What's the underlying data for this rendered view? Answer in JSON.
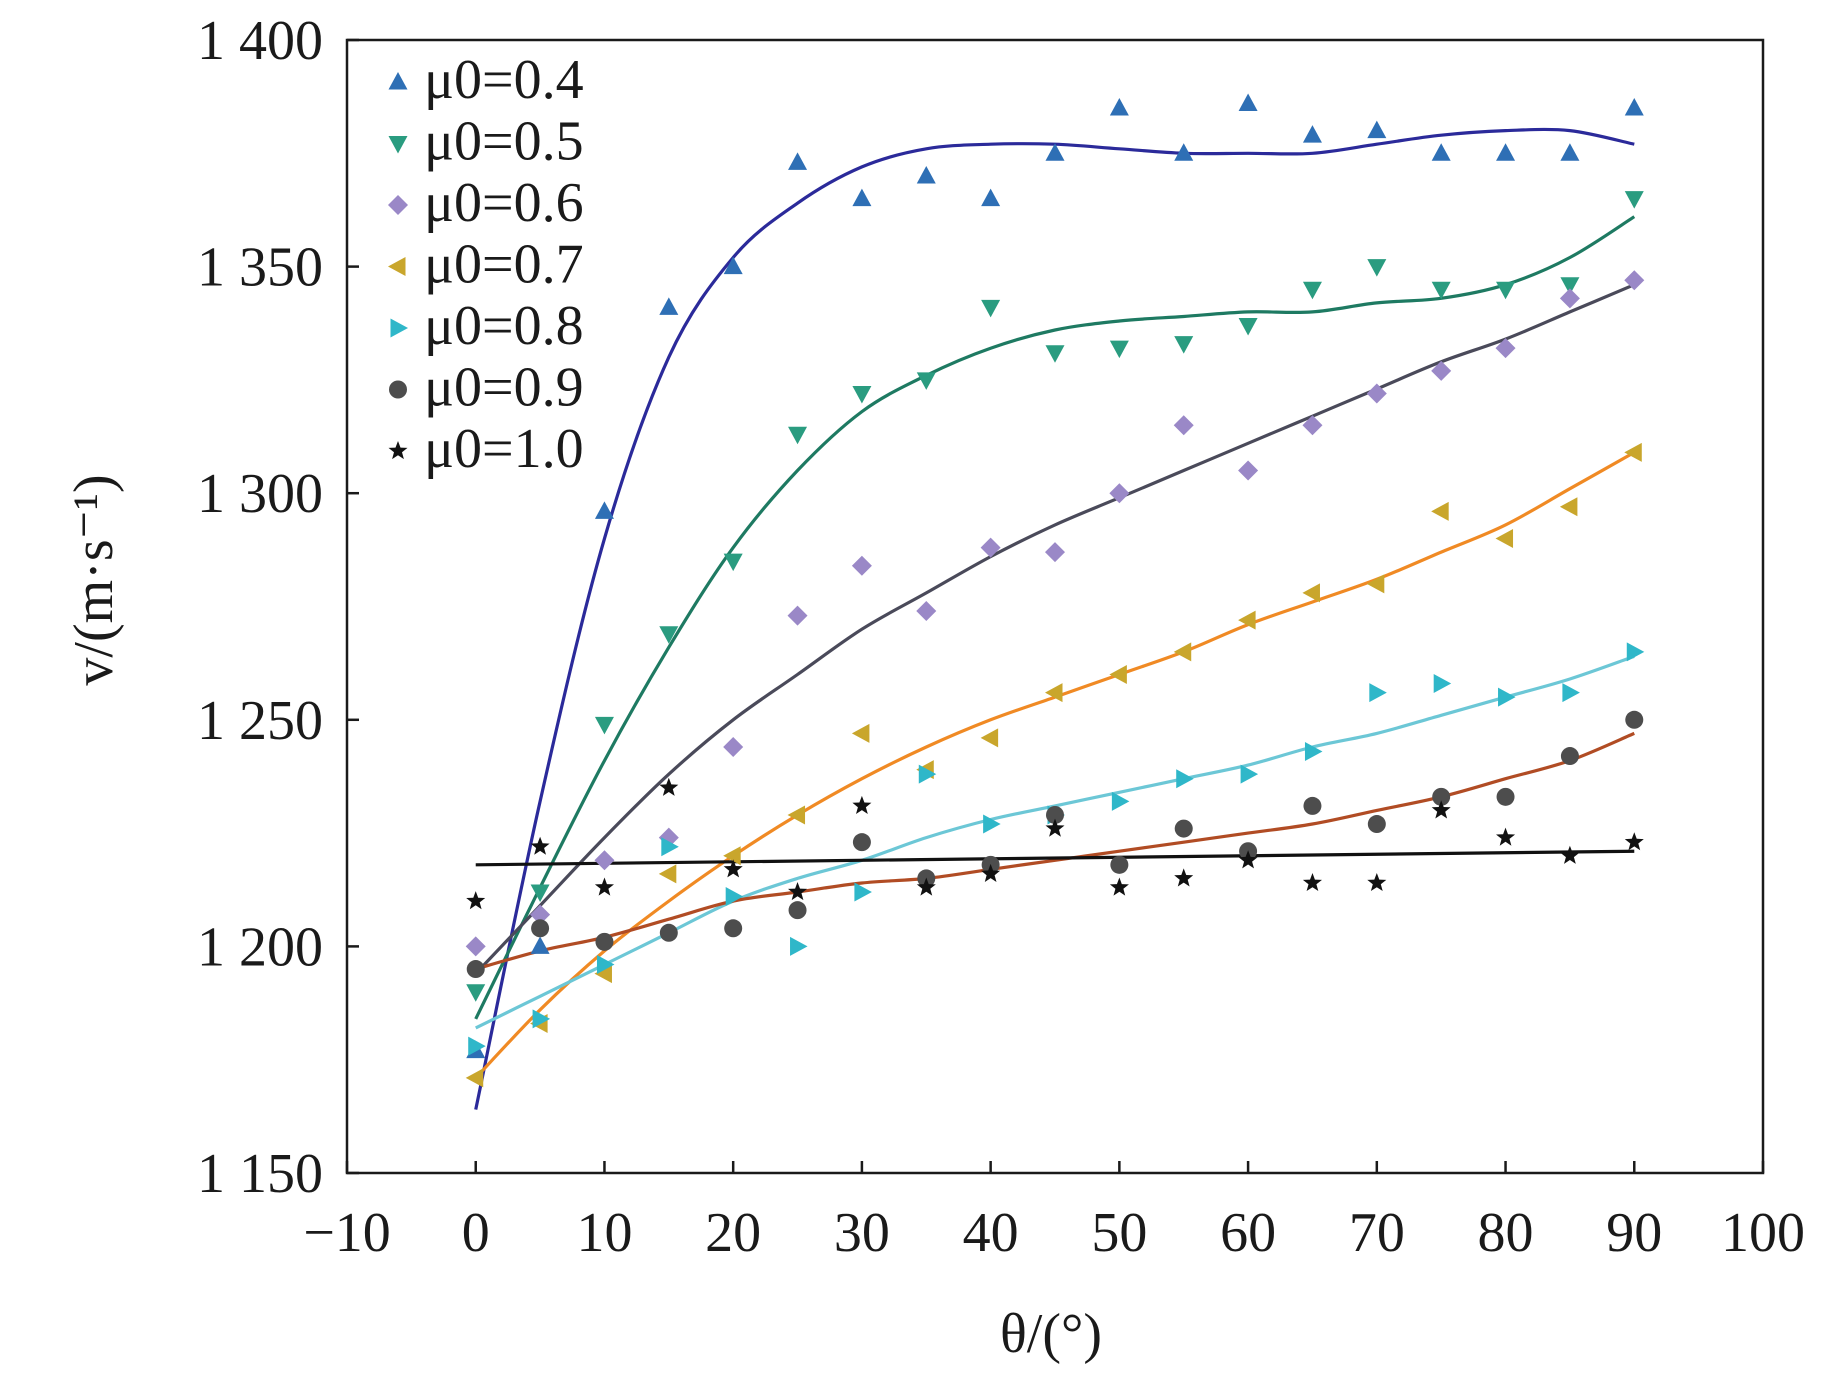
{
  "chart_data": {
    "type": "scatter",
    "xlabel": "θ/(°)",
    "ylabel": "v/(m·s⁻¹)",
    "xlim": [
      -10,
      100
    ],
    "ylim": [
      1150,
      1400
    ],
    "x_ticks": [
      -10,
      0,
      10,
      20,
      30,
      40,
      50,
      60,
      70,
      80,
      90,
      100
    ],
    "x_tick_labels": [
      "−10",
      "0",
      "10",
      "20",
      "30",
      "40",
      "50",
      "60",
      "70",
      "80",
      "90",
      "100"
    ],
    "y_ticks": [
      1150,
      1200,
      1250,
      1300,
      1350,
      1400
    ],
    "y_tick_labels": [
      "1 150",
      "1 200",
      "1 250",
      "1 300",
      "1 350",
      "1 400"
    ],
    "legend_position": "top-left",
    "grid": false,
    "x": [
      0,
      5,
      10,
      15,
      20,
      25,
      30,
      35,
      40,
      45,
      50,
      55,
      60,
      65,
      70,
      75,
      80,
      85,
      90
    ],
    "series": [
      {
        "name": "μ0=0.4",
        "marker": "triangle-up",
        "marker_color": "#2e6fb5",
        "line_color": "#2b2a9a",
        "values": [
          1177,
          1200,
          1296,
          1341,
          1350,
          1373,
          1365,
          1370,
          1365,
          1375,
          1385,
          1375,
          1386,
          1379,
          1380,
          1375,
          1375,
          1375,
          1385
        ],
        "fit": [
          [
            0,
            1164
          ],
          [
            5,
            1232
          ],
          [
            10,
            1290
          ],
          [
            15,
            1330
          ],
          [
            20,
            1352
          ],
          [
            25,
            1364
          ],
          [
            30,
            1372
          ],
          [
            35,
            1376
          ],
          [
            40,
            1377
          ],
          [
            45,
            1377
          ],
          [
            50,
            1376
          ],
          [
            55,
            1375
          ],
          [
            60,
            1375
          ],
          [
            65,
            1375
          ],
          [
            70,
            1377
          ],
          [
            75,
            1379
          ],
          [
            80,
            1380
          ],
          [
            85,
            1380
          ],
          [
            90,
            1377
          ]
        ]
      },
      {
        "name": "μ0=0.5",
        "marker": "triangle-down",
        "marker_color": "#2a9c80",
        "line_color": "#1e7a62",
        "values": [
          1190,
          1212,
          1249,
          1269,
          1285,
          1313,
          1322,
          1325,
          1341,
          1331,
          1332,
          1333,
          1337,
          1345,
          1350,
          1345,
          1345,
          1346,
          1365
        ],
        "fit": [
          [
            0,
            1184
          ],
          [
            5,
            1213
          ],
          [
            10,
            1241
          ],
          [
            15,
            1266
          ],
          [
            20,
            1288
          ],
          [
            25,
            1305
          ],
          [
            30,
            1318
          ],
          [
            35,
            1326
          ],
          [
            40,
            1332
          ],
          [
            45,
            1336
          ],
          [
            50,
            1338
          ],
          [
            55,
            1339
          ],
          [
            60,
            1340
          ],
          [
            65,
            1340
          ],
          [
            70,
            1342
          ],
          [
            75,
            1343
          ],
          [
            80,
            1346
          ],
          [
            85,
            1352
          ],
          [
            90,
            1361
          ]
        ]
      },
      {
        "name": "μ0=0.6",
        "marker": "diamond",
        "marker_color": "#9a88c7",
        "line_color": "#4a4a5a",
        "values": [
          1200,
          1207,
          1219,
          1224,
          1244,
          1273,
          1284,
          1274,
          1288,
          1287,
          1300,
          1315,
          1305,
          1315,
          1322,
          1327,
          1332,
          1343,
          1347
        ],
        "fit": [
          [
            0,
            1194
          ],
          [
            5,
            1209
          ],
          [
            10,
            1224
          ],
          [
            15,
            1238
          ],
          [
            20,
            1250
          ],
          [
            25,
            1260
          ],
          [
            30,
            1270
          ],
          [
            35,
            1278
          ],
          [
            40,
            1286
          ],
          [
            45,
            1293
          ],
          [
            50,
            1299
          ],
          [
            55,
            1305
          ],
          [
            60,
            1311
          ],
          [
            65,
            1317
          ],
          [
            70,
            1323
          ],
          [
            75,
            1329
          ],
          [
            80,
            1334
          ],
          [
            85,
            1340
          ],
          [
            90,
            1346
          ]
        ]
      },
      {
        "name": "μ0=0.7",
        "marker": "triangle-left",
        "marker_color": "#c9a62c",
        "line_color": "#f08a24",
        "values": [
          1171,
          1183,
          1194,
          1216,
          1220,
          1229,
          1247,
          1239,
          1246,
          1256,
          1260,
          1265,
          1272,
          1278,
          1280,
          1296,
          1290,
          1297,
          1309
        ],
        "fit": [
          [
            0,
            1171
          ],
          [
            5,
            1186
          ],
          [
            10,
            1199
          ],
          [
            15,
            1210
          ],
          [
            20,
            1220
          ],
          [
            25,
            1229
          ],
          [
            30,
            1237
          ],
          [
            35,
            1244
          ],
          [
            40,
            1250
          ],
          [
            45,
            1255
          ],
          [
            50,
            1260
          ],
          [
            55,
            1265
          ],
          [
            60,
            1271
          ],
          [
            65,
            1276
          ],
          [
            70,
            1281
          ],
          [
            75,
            1287
          ],
          [
            80,
            1293
          ],
          [
            85,
            1301
          ],
          [
            90,
            1309
          ]
        ]
      },
      {
        "name": "μ0=0.8",
        "marker": "triangle-right",
        "marker_color": "#2fb7c9",
        "line_color": "#6cc7d6",
        "values": [
          1178,
          1184,
          1196,
          1222,
          1211,
          1200,
          1212,
          1238,
          1227,
          1229,
          1232,
          1237,
          1238,
          1243,
          1256,
          1258,
          1255,
          1256,
          1265
        ],
        "fit": [
          [
            0,
            1182
          ],
          [
            5,
            1189
          ],
          [
            10,
            1196
          ],
          [
            15,
            1203
          ],
          [
            20,
            1210
          ],
          [
            25,
            1215
          ],
          [
            30,
            1219
          ],
          [
            35,
            1224
          ],
          [
            40,
            1228
          ],
          [
            45,
            1231
          ],
          [
            50,
            1234
          ],
          [
            55,
            1237
          ],
          [
            60,
            1240
          ],
          [
            65,
            1244
          ],
          [
            70,
            1247
          ],
          [
            75,
            1251
          ],
          [
            80,
            1255
          ],
          [
            85,
            1259
          ],
          [
            90,
            1264
          ]
        ]
      },
      {
        "name": "μ0=0.9",
        "marker": "circle",
        "marker_color": "#4d4d4d",
        "line_color": "#b14c24",
        "values": [
          1195,
          1204,
          1201,
          1203,
          1204,
          1208,
          1223,
          1215,
          1218,
          1229,
          1218,
          1226,
          1221,
          1231,
          1227,
          1233,
          1233,
          1242,
          1250
        ],
        "fit": [
          [
            0,
            1195
          ],
          [
            5,
            1199
          ],
          [
            10,
            1202
          ],
          [
            15,
            1206
          ],
          [
            20,
            1210
          ],
          [
            25,
            1212
          ],
          [
            30,
            1214
          ],
          [
            35,
            1215
          ],
          [
            40,
            1217
          ],
          [
            45,
            1219
          ],
          [
            50,
            1221
          ],
          [
            55,
            1223
          ],
          [
            60,
            1225
          ],
          [
            65,
            1227
          ],
          [
            70,
            1230
          ],
          [
            75,
            1233
          ],
          [
            80,
            1237
          ],
          [
            85,
            1241
          ],
          [
            90,
            1247
          ]
        ]
      },
      {
        "name": "μ0=1.0",
        "marker": "star",
        "marker_color": "#111111",
        "line_color": "#111111",
        "values": [
          1210,
          1222,
          1213,
          1235,
          1217,
          1212,
          1231,
          1213,
          1216,
          1226,
          1213,
          1215,
          1219,
          1214,
          1214,
          1230,
          1224,
          1220,
          1223
        ],
        "fit": [
          [
            0,
            1218
          ],
          [
            90,
            1221
          ]
        ]
      }
    ]
  }
}
